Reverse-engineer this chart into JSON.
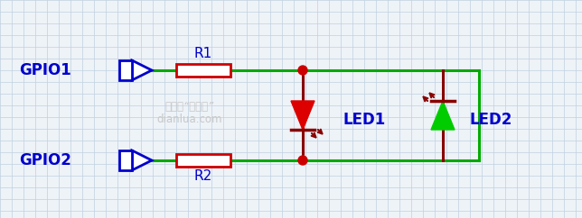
{
  "bg_color": "#eef3f8",
  "grid_color": "#c0d0e0",
  "wire_color": "#00aa00",
  "resistor_color": "#cc0000",
  "led_red_color": "#dd0000",
  "led_green_color": "#00cc00",
  "gpio_color": "#0000cc",
  "dot_color": "#cc0000",
  "label_color": "#0000cc",
  "watermark_color": "#c8c8c8",
  "gpio1_label": "GPIO1",
  "gpio2_label": "GPIO2",
  "r1_label": "R1",
  "r2_label": "R2",
  "led1_label": "LED1",
  "led2_label": "LED2",
  "watermark_line1": "公众号“电路啊”",
  "watermark_line2": "dianlua.com",
  "figsize": [
    6.44,
    2.42
  ],
  "dpi": 100
}
